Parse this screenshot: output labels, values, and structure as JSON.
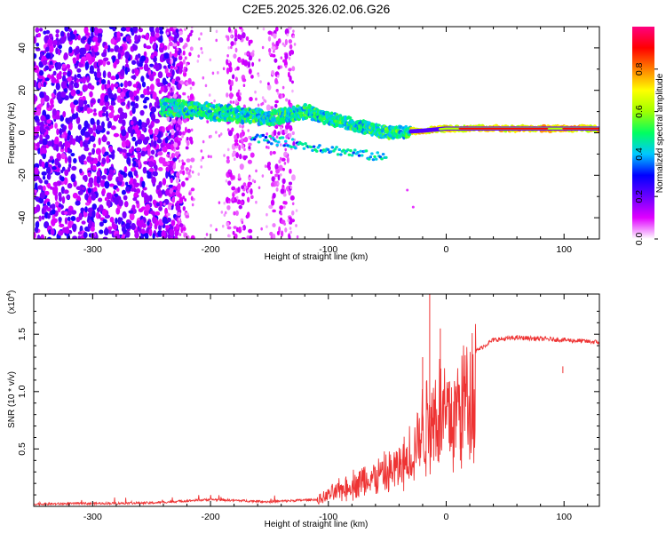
{
  "title": "C2E5.2025.326.02.06.G26",
  "chart_data": [
    {
      "type": "heatmap",
      "name": "spectrogram",
      "xlabel": "Height of straight line (km)",
      "ylabel": "Frequency (Hz)",
      "xlim": [
        -350,
        130
      ],
      "ylim": [
        -50,
        50
      ],
      "xticks": [
        -300,
        -200,
        -100,
        0,
        100
      ],
      "yticks": [
        -40,
        -20,
        0,
        20,
        40
      ],
      "colorbar": {
        "label": "Normalized spectral amplitude",
        "range": [
          0.0,
          1.0
        ],
        "ticks": [
          0.0,
          0.2,
          0.4,
          0.6,
          0.8
        ],
        "tick_labels": [
          "0.0",
          "0.2",
          "0.4",
          "0.6",
          "0.8"
        ],
        "colors": [
          "#ffffff",
          "#e000ff",
          "#6a00ff",
          "#0000ff",
          "#00c8ff",
          "#00ff60",
          "#a0ff00",
          "#ffff00",
          "#ff8000",
          "#ff0000",
          "#ff0080"
        ]
      },
      "features": {
        "noise_region_x": [
          -350,
          -240
        ],
        "scatter_columns_x": [
          -225,
          -175,
          -140
        ],
        "signal_trace": [
          {
            "x": -240,
            "f": 12
          },
          {
            "x": -200,
            "f": 10
          },
          {
            "x": -150,
            "f": 7
          },
          {
            "x": -120,
            "f": 10
          },
          {
            "x": -80,
            "f": 4
          },
          {
            "x": -50,
            "f": 0
          },
          {
            "x": -20,
            "f": 1
          },
          {
            "x": 0,
            "f": 2
          },
          {
            "x": 50,
            "f": 2
          },
          {
            "x": 100,
            "f": 2
          },
          {
            "x": 130,
            "f": 2
          }
        ],
        "peak_band_x": [
          -30,
          130
        ]
      }
    },
    {
      "type": "line",
      "name": "snr",
      "xlabel": "Height of straight line (km)",
      "ylabel": "SNR (10 * v/v)",
      "scale_label": "(x10",
      "scale_exponent": "4",
      "scale_suffix": ")",
      "xlim": [
        -350,
        130
      ],
      "ylim": [
        0,
        1.85
      ],
      "xticks": [
        -300,
        -200,
        -100,
        0,
        100
      ],
      "yticks": [
        0.5,
        1.0,
        1.5
      ],
      "ytick_labels": [
        "0.5",
        "1.0",
        "1.5"
      ],
      "color": "#ee3333",
      "envelope": [
        {
          "x": -350,
          "y": 0.02
        },
        {
          "x": -250,
          "y": 0.03
        },
        {
          "x": -200,
          "y": 0.06
        },
        {
          "x": -150,
          "y": 0.04
        },
        {
          "x": -110,
          "y": 0.06
        },
        {
          "x": -90,
          "y": 0.18
        },
        {
          "x": -70,
          "y": 0.28
        },
        {
          "x": -50,
          "y": 0.35
        },
        {
          "x": -35,
          "y": 0.45
        },
        {
          "x": -25,
          "y": 0.7
        },
        {
          "x": -15,
          "y": 0.95
        },
        {
          "x": -5,
          "y": 1.05
        },
        {
          "x": 5,
          "y": 0.95
        },
        {
          "x": 15,
          "y": 1.15
        },
        {
          "x": 25,
          "y": 1.35
        },
        {
          "x": 40,
          "y": 1.45
        },
        {
          "x": 60,
          "y": 1.47
        },
        {
          "x": 80,
          "y": 1.46
        },
        {
          "x": 100,
          "y": 1.45
        },
        {
          "x": 115,
          "y": 1.44
        },
        {
          "x": 130,
          "y": 1.43
        }
      ],
      "spikes": [
        {
          "x": -14,
          "y": 1.85
        },
        {
          "x": -20,
          "y": 1.3
        },
        {
          "x": -5,
          "y": 1.55
        },
        {
          "x": 12,
          "y": 0.4
        },
        {
          "x": 99,
          "y": 1.22
        }
      ]
    }
  ]
}
